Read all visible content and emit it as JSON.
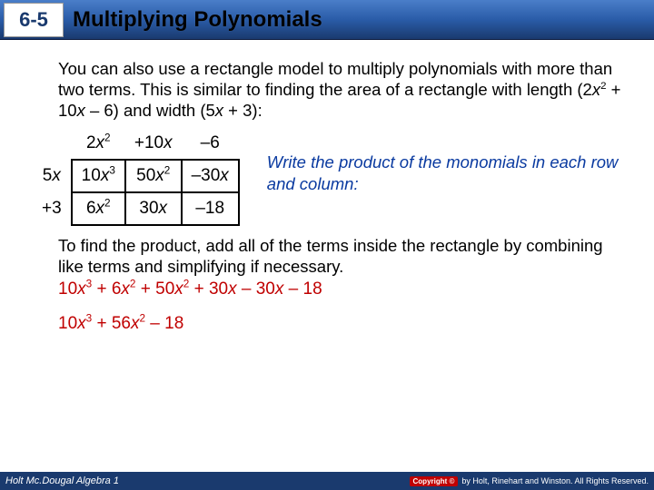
{
  "header": {
    "lesson_number": "6-5",
    "title": "Multiplying Polynomials"
  },
  "intro": {
    "part1": "You can also use a rectangle model to multiply polynomials with more than two terms. This is similar to finding the area of a rectangle with length (2",
    "x1": "x",
    "sup1": "2",
    "part2": " + 10",
    "x2": "x",
    "part3": " – 6) and width (5",
    "x3": "x",
    "part4": " + 3):"
  },
  "table": {
    "top": {
      "c1a": "2",
      "c1x": "x",
      "c1s": "2",
      "c2a": "+10",
      "c2x": "x",
      "c3": "–6"
    },
    "left": {
      "r1a": "5",
      "r1x": "x",
      "r2": "+3"
    },
    "cells": {
      "r1c1a": "10",
      "r1c1x": "x",
      "r1c1s": "3",
      "r1c2a": "50",
      "r1c2x": "x",
      "r1c2s": "2",
      "r1c3a": "–30",
      "r1c3x": "x",
      "r2c1a": "6",
      "r2c1x": "x",
      "r2c1s": "2",
      "r2c2a": "30",
      "r2c2x": "x",
      "r2c3": "–18"
    }
  },
  "annotation": "Write the product of the monomials in each row and column:",
  "para2": "To find the product, add all of the terms inside the rectangle by combining like terms and simplifying if necessary.",
  "expand": {
    "t1": "10",
    "x1": "x",
    "s1": "3",
    "t2": " + 6",
    "x2": "x",
    "s2": "2",
    "t3": " + 50",
    "x3": "x",
    "s3": "2",
    "t4": " + 30",
    "x4": "x",
    "t5": " – 30",
    "x5": "x",
    "t6": " – 18"
  },
  "result": {
    "t1": "10",
    "x1": "x",
    "s1": "3",
    "t2": " + 56",
    "x2": "x",
    "s2": "2",
    "t3": " – 18"
  },
  "footer": {
    "left": "Holt Mc.Dougal Algebra 1",
    "badge": "Copyright ©",
    "right": "by Holt, Rinehart and Winston. All Rights Reserved."
  }
}
